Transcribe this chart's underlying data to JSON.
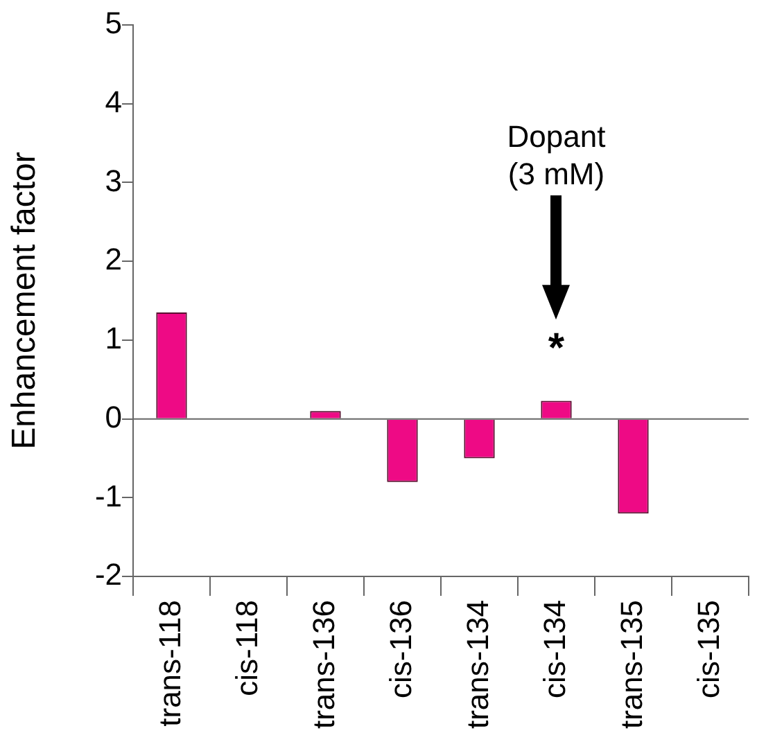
{
  "chart_data": {
    "type": "bar",
    "ylabel": "Enhancement factor",
    "categories": [
      "trans-118",
      "cis-118",
      "trans-136",
      "cis-136",
      "trans-134",
      "cis-134",
      "trans-135",
      "cis-135"
    ],
    "values": [
      1.35,
      0,
      0.1,
      -0.8,
      -0.5,
      0.23,
      -1.2,
      0
    ],
    "color": "#ee0a85",
    "ylim": [
      -2,
      5
    ],
    "yticks": [
      -2,
      -1,
      0,
      1,
      2,
      3,
      4,
      5
    ],
    "grid": false,
    "legend": false,
    "ref_lines": [
      {
        "axis": "y",
        "value": 0,
        "color": "#666666"
      }
    ],
    "annotations": [
      "Dopant (3 mM)",
      "*"
    ]
  }
}
